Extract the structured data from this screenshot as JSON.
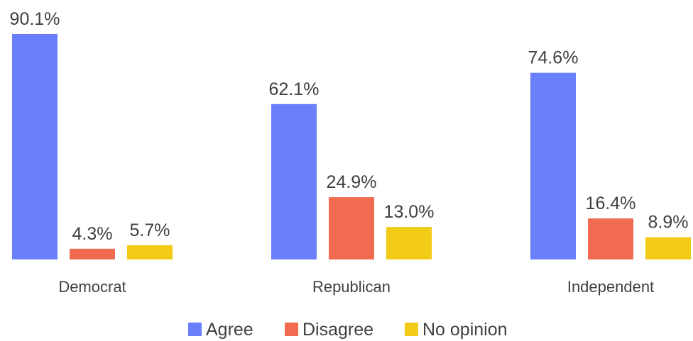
{
  "chart_data": {
    "type": "bar",
    "categories": [
      "Democrat",
      "Republican",
      "Independent"
    ],
    "series": [
      {
        "name": "Agree",
        "values": [
          90.1,
          62.1,
          74.6
        ],
        "labels": [
          "90.1%",
          "62.1%",
          "74.6%"
        ],
        "color": "#6a7ffa"
      },
      {
        "name": "Disagree",
        "values": [
          4.3,
          24.9,
          16.4
        ],
        "labels": [
          "4.3%",
          "24.9%",
          "16.4%"
        ],
        "color": "#f06b4f"
      },
      {
        "name": "No opinion",
        "values": [
          5.7,
          13.0,
          8.9
        ],
        "labels": [
          "5.7%",
          "13.0%",
          "8.9%"
        ],
        "color": "#f2cb17"
      }
    ],
    "ylim": [
      0,
      100
    ],
    "grid": false,
    "legend_position": "bottom"
  }
}
